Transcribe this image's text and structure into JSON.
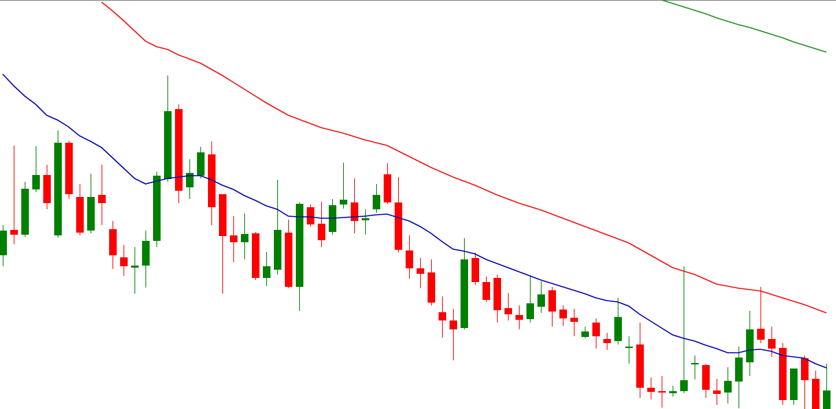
{
  "chart_data": {
    "type": "candlestick",
    "ylim": [
      0,
      596
    ],
    "up_color": "#008000",
    "down_color": "#ff0000",
    "open": [
      224,
      261,
      254,
      320,
      341,
      253,
      388,
      309,
      260,
      312,
      262,
      221,
      206,
      209,
      245,
      335,
      437,
      323,
      340,
      371,
      313,
      253,
      243,
      256,
      191,
      203,
      257,
      178,
      294,
      270,
      258,
      298,
      301,
      275,
      291,
      342,
      301,
      231,
      205,
      199,
      141,
      129,
      118,
      220,
      185,
      191,
      147,
      137,
      131,
      149,
      173,
      145,
      133,
      105,
      126,
      102,
      99,
      89,
      94,
      31,
      26,
      23,
      26,
      65,
      64,
      27,
      24,
      40,
      68,
      117,
      102,
      89,
      13,
      74,
      44,
      0
    ],
    "high": [
      268,
      384,
      331,
      383,
      356,
      406,
      391,
      328,
      343,
      356,
      274,
      239,
      236,
      260,
      346,
      486,
      444,
      364,
      382,
      390,
      313,
      281,
      285,
      258,
      229,
      334,
      276,
      301,
      298,
      302,
      306,
      359,
      336,
      291,
      328,
      358,
      338,
      253,
      220,
      218,
      164,
      146,
      249,
      228,
      193,
      196,
      169,
      151,
      193,
      186,
      178,
      151,
      146,
      120,
      132,
      111,
      162,
      106,
      126,
      46,
      48,
      34,
      208,
      78,
      66,
      44,
      61,
      91,
      143,
      178,
      120,
      96,
      59,
      78,
      56,
      66
    ],
    "low": [
      208,
      240,
      251,
      316,
      291,
      250,
      306,
      253,
      256,
      268,
      204,
      194,
      168,
      177,
      236,
      331,
      300,
      306,
      336,
      268,
      168,
      214,
      218,
      188,
      179,
      196,
      176,
      143,
      266,
      236,
      254,
      292,
      256,
      254,
      286,
      299,
      228,
      190,
      176,
      151,
      104,
      71,
      116,
      181,
      156,
      126,
      129,
      116,
      126,
      140,
      120,
      121,
      106,
      103,
      88,
      86,
      94,
      66,
      16,
      14,
      2,
      18,
      23,
      43,
      16,
      6,
      8,
      1,
      48,
      96,
      76,
      6,
      6,
      0,
      0,
      0
    ],
    "close": [
      260,
      254,
      321,
      341,
      300,
      388,
      313,
      257,
      309,
      300,
      224,
      208,
      209,
      245,
      340,
      434,
      318,
      344,
      374,
      294,
      252,
      243,
      255,
      191,
      208,
      261,
      178,
      299,
      269,
      246,
      297,
      305,
      274,
      278,
      312,
      301,
      232,
      205,
      197,
      155,
      129,
      116,
      218,
      185,
      159,
      144,
      138,
      130,
      154,
      167,
      142,
      132,
      127,
      113,
      106,
      96,
      134,
      91,
      31,
      25,
      24,
      26,
      42,
      67,
      28,
      22,
      41,
      75,
      116,
      101,
      88,
      13,
      59,
      42,
      0,
      27
    ],
    "series": [
      {
        "color": "#0000b0",
        "values": [
          488,
          471,
          456,
          444,
          428,
          421,
          411,
          398,
          390,
          381,
          366,
          351,
          336,
          328,
          332,
          336,
          338,
          340,
          340,
          334,
          326,
          320,
          311,
          304,
          296,
          291,
          281,
          280,
          280,
          278,
          278,
          279,
          280,
          281,
          283,
          284,
          279,
          274,
          266,
          256,
          244,
          233,
          230,
          226,
          218,
          212,
          206,
          200,
          194,
          188,
          183,
          178,
          173,
          168,
          162,
          158,
          156,
          150,
          138,
          128,
          118,
          108,
          103,
          99,
          93,
          88,
          82,
          82,
          86,
          87,
          84,
          78,
          76,
          74,
          66,
          60
        ]
      },
      {
        "color": "#ee1111",
        "values": [
          null,
          null,
          null,
          null,
          null,
          null,
          null,
          null,
          null,
          593,
          580,
          566,
          551,
          536,
          528,
          524,
          516,
          510,
          504,
          495,
          486,
          476,
          466,
          456,
          446,
          437,
          428,
          422,
          416,
          410,
          406,
          402,
          397,
          392,
          388,
          384,
          376,
          368,
          360,
          352,
          345,
          338,
          332,
          326,
          319,
          312,
          306,
          300,
          295,
          290,
          284,
          278,
          272,
          266,
          260,
          254,
          248,
          242,
          233,
          224,
          215,
          206,
          201,
          196,
          189,
          182,
          179,
          176,
          174,
          172,
          167,
          162,
          157,
          152,
          146,
          140
        ]
      },
      {
        "color": "#228b22",
        "values": [
          null,
          null,
          null,
          null,
          null,
          null,
          null,
          null,
          null,
          null,
          null,
          null,
          null,
          null,
          null,
          null,
          null,
          null,
          null,
          null,
          null,
          null,
          null,
          null,
          null,
          null,
          null,
          null,
          null,
          null,
          null,
          null,
          null,
          null,
          null,
          null,
          null,
          null,
          null,
          null,
          null,
          null,
          null,
          null,
          null,
          null,
          null,
          null,
          null,
          null,
          null,
          null,
          null,
          null,
          null,
          null,
          null,
          null,
          null,
          null,
          596,
          591,
          586,
          581,
          576,
          570,
          565,
          560,
          556,
          551,
          546,
          541,
          535,
          530,
          525,
          520
        ]
      }
    ]
  }
}
